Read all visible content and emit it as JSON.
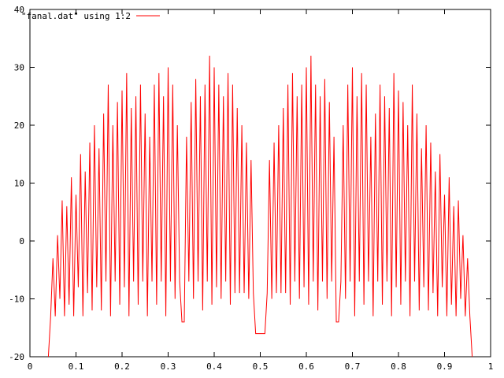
{
  "chart_data": {
    "type": "line",
    "title": "",
    "xlabel": "",
    "ylabel": "",
    "xlim": [
      0,
      1
    ],
    "ylim": [
      -20,
      40
    ],
    "x_ticks": [
      "0",
      "0.1",
      "0.2",
      "0.3",
      "0.4",
      "0.5",
      "0.6",
      "0.7",
      "0.8",
      "0.9",
      "1"
    ],
    "y_ticks": [
      "-20",
      "-10",
      "0",
      "10",
      "20",
      "30",
      "40"
    ],
    "grid": false,
    "legend_position": "top-left",
    "series": [
      {
        "name": "\"fanal.dat\" using 1:2",
        "color": "#ff0000",
        "x": [
          0.04,
          0.045,
          0.05,
          0.055,
          0.06,
          0.065,
          0.07,
          0.075,
          0.08,
          0.085,
          0.09,
          0.095,
          0.1,
          0.105,
          0.11,
          0.115,
          0.12,
          0.125,
          0.13,
          0.135,
          0.14,
          0.145,
          0.15,
          0.155,
          0.16,
          0.165,
          0.17,
          0.175,
          0.18,
          0.185,
          0.19,
          0.195,
          0.2,
          0.205,
          0.21,
          0.215,
          0.22,
          0.225,
          0.23,
          0.235,
          0.24,
          0.245,
          0.25,
          0.255,
          0.26,
          0.265,
          0.27,
          0.275,
          0.28,
          0.285,
          0.29,
          0.295,
          0.3,
          0.305,
          0.31,
          0.315,
          0.32,
          0.325,
          0.33,
          0.335,
          0.34,
          0.345,
          0.35,
          0.355,
          0.36,
          0.365,
          0.37,
          0.375,
          0.38,
          0.385,
          0.39,
          0.395,
          0.4,
          0.405,
          0.41,
          0.415,
          0.42,
          0.425,
          0.43,
          0.435,
          0.44,
          0.445,
          0.45,
          0.455,
          0.46,
          0.465,
          0.47,
          0.475,
          0.48,
          0.485,
          0.49,
          0.495,
          0.5,
          0.505,
          0.51,
          0.515,
          0.52,
          0.525,
          0.53,
          0.535,
          0.54,
          0.545,
          0.55,
          0.555,
          0.56,
          0.565,
          0.57,
          0.575,
          0.58,
          0.585,
          0.59,
          0.595,
          0.6,
          0.605,
          0.61,
          0.615,
          0.62,
          0.625,
          0.63,
          0.635,
          0.64,
          0.645,
          0.65,
          0.655,
          0.66,
          0.665,
          0.67,
          0.675,
          0.68,
          0.685,
          0.69,
          0.695,
          0.7,
          0.705,
          0.71,
          0.715,
          0.72,
          0.725,
          0.73,
          0.735,
          0.74,
          0.745,
          0.75,
          0.755,
          0.76,
          0.765,
          0.77,
          0.775,
          0.78,
          0.785,
          0.79,
          0.795,
          0.8,
          0.805,
          0.81,
          0.815,
          0.82,
          0.825,
          0.83,
          0.835,
          0.84,
          0.845,
          0.85,
          0.855,
          0.86,
          0.865,
          0.87,
          0.875,
          0.88,
          0.885,
          0.89,
          0.895,
          0.9,
          0.905,
          0.91,
          0.915,
          0.92,
          0.925,
          0.93,
          0.935,
          0.94,
          0.945,
          0.95,
          0.955,
          0.96
        ],
        "y": [
          -20,
          -13,
          -3,
          -13,
          1,
          -10,
          7,
          -13,
          6,
          -11,
          11,
          -13,
          8,
          -8,
          15,
          -13,
          12,
          -9,
          17,
          -12,
          20,
          -8,
          16,
          -12,
          22,
          -7,
          27,
          -13,
          20,
          -7,
          24,
          -11,
          26,
          -8,
          29,
          -13,
          23,
          -7,
          25,
          -11,
          27,
          -7,
          22,
          -13,
          18,
          -7,
          27,
          -11,
          29,
          -7,
          25,
          -13,
          30,
          -7,
          27,
          -10,
          20,
          -7,
          -14,
          -14,
          18,
          -7,
          24,
          -10,
          28,
          -7,
          25,
          -12,
          27,
          -7,
          32,
          -11,
          30,
          -8,
          27,
          -10,
          25,
          -7,
          29,
          -11,
          27,
          -9,
          23,
          -9,
          20,
          -9,
          17,
          -10,
          14,
          -9,
          -16,
          -16,
          -16,
          -16,
          -16,
          -9,
          14,
          -10,
          17,
          -9,
          20,
          -9,
          23,
          -9,
          27,
          -11,
          29,
          -7,
          25,
          -10,
          27,
          -8,
          30,
          -11,
          32,
          -7,
          27,
          -12,
          25,
          -7,
          28,
          -10,
          24,
          -7,
          18,
          -14,
          -14,
          -7,
          20,
          -10,
          27,
          -7,
          30,
          -13,
          25,
          -7,
          29,
          -11,
          27,
          -7,
          18,
          -13,
          22,
          -7,
          27,
          -11,
          25,
          -7,
          23,
          -13,
          29,
          -8,
          26,
          -11,
          24,
          -7,
          20,
          -13,
          27,
          -7,
          22,
          -12,
          16,
          -8,
          20,
          -12,
          17,
          -9,
          12,
          -13,
          15,
          -8,
          8,
          -13,
          11,
          -11,
          6,
          -13,
          7,
          -10,
          1,
          -13,
          -3,
          -13,
          -20
        ]
      }
    ]
  }
}
